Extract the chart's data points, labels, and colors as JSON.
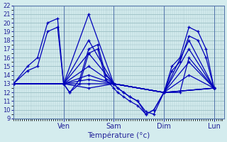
{
  "xlabel": "Température (°c)",
  "ylim": [
    9,
    22
  ],
  "bg_color": "#d4ecee",
  "grid_color": "#9bbfc4",
  "line_color": "#0000bb",
  "x_ticks_pos": [
    0.25,
    0.5,
    0.75,
    1.0
  ],
  "x_tick_labels": [
    "Ven",
    "Sam",
    "Dim",
    "Lun"
  ],
  "x_min": 0.0,
  "x_max": 1.05,
  "series": [
    {
      "x": [
        0.0,
        0.07,
        0.12,
        0.17,
        0.22,
        0.25,
        0.28,
        0.33,
        0.375,
        0.42,
        0.46,
        0.5,
        0.52,
        0.55,
        0.58,
        0.62,
        0.66,
        0.7,
        0.75,
        0.79,
        0.83,
        0.875,
        0.92,
        0.96,
        1.0
      ],
      "y": [
        13,
        15,
        16,
        20,
        20.5,
        13,
        12,
        13.5,
        17,
        17.5,
        14,
        13,
        12.5,
        12,
        11.5,
        11,
        9.5,
        10,
        12,
        15,
        16,
        19.5,
        19,
        17,
        12.5
      ]
    },
    {
      "x": [
        0.0,
        0.07,
        0.12,
        0.17,
        0.22,
        0.25,
        0.28,
        0.33,
        0.375,
        0.42,
        0.46,
        0.5,
        0.52,
        0.55,
        0.58,
        0.62,
        0.66,
        0.7,
        0.75,
        0.79,
        0.83,
        0.875,
        0.92,
        0.96,
        1.0
      ],
      "y": [
        13,
        14.5,
        15,
        19,
        19.5,
        13,
        12,
        13,
        16.5,
        17,
        13.5,
        12.5,
        12,
        11.5,
        11,
        10.5,
        9.5,
        10,
        12,
        14.5,
        15.5,
        18.5,
        18,
        16,
        12.5
      ]
    },
    {
      "x": [
        0.0,
        0.25,
        0.375,
        0.5,
        0.52,
        0.55,
        0.58,
        0.62,
        0.66,
        0.7,
        0.75,
        0.83,
        0.875,
        1.0
      ],
      "y": [
        13,
        13,
        21,
        13,
        12.5,
        12,
        11.5,
        11,
        9.8,
        9.5,
        12,
        12,
        16,
        12.5
      ]
    },
    {
      "x": [
        0.0,
        0.25,
        0.375,
        0.5,
        0.75,
        0.875,
        1.0
      ],
      "y": [
        13,
        13,
        18,
        13,
        12,
        18,
        12.5
      ]
    },
    {
      "x": [
        0.0,
        0.25,
        0.375,
        0.5,
        0.75,
        0.875,
        1.0
      ],
      "y": [
        13,
        13,
        16.5,
        13,
        12,
        17,
        12.5
      ]
    },
    {
      "x": [
        0.0,
        0.25,
        0.375,
        0.5,
        0.75,
        0.875,
        1.0
      ],
      "y": [
        13,
        13,
        15,
        13,
        12,
        15.5,
        12.5
      ]
    },
    {
      "x": [
        0.0,
        0.25,
        0.375,
        0.5,
        0.75,
        0.875,
        1.0
      ],
      "y": [
        13,
        13,
        14,
        13,
        12,
        14,
        12.5
      ]
    },
    {
      "x": [
        0.0,
        0.25,
        0.375,
        0.5,
        0.75,
        1.0
      ],
      "y": [
        13,
        13,
        13.5,
        13,
        12,
        12.5
      ]
    },
    {
      "x": [
        0.0,
        0.25,
        0.375,
        0.5,
        0.75,
        1.0
      ],
      "y": [
        13,
        13,
        13,
        13,
        12,
        12.5
      ]
    },
    {
      "x": [
        0.0,
        0.25,
        0.375,
        0.5,
        0.75,
        1.0
      ],
      "y": [
        13,
        13,
        12.5,
        13,
        12,
        12.5
      ]
    }
  ]
}
